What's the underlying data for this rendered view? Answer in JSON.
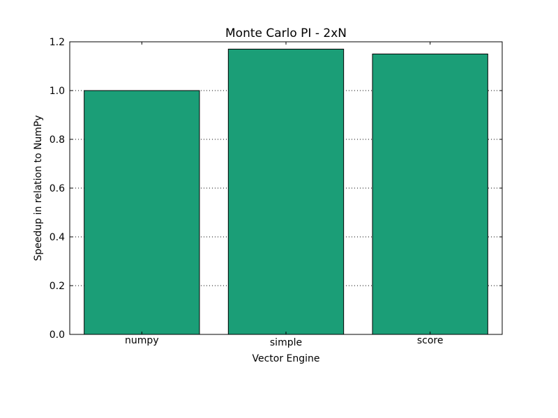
{
  "chart_data": {
    "type": "bar",
    "title": "Monte Carlo PI - 2xN",
    "xlabel": "Vector Engine",
    "ylabel": "Speedup in relation to NumPy",
    "categories": [
      "numpy",
      "simple",
      "score"
    ],
    "values": [
      1.0,
      1.17,
      1.15
    ],
    "ylim": [
      0,
      1.2
    ],
    "yticks": [
      "0.0",
      "0.2",
      "0.4",
      "0.6",
      "0.8",
      "1.0",
      "1.2"
    ],
    "grid": "y-dotted",
    "bar_color": "#1b9e77"
  }
}
